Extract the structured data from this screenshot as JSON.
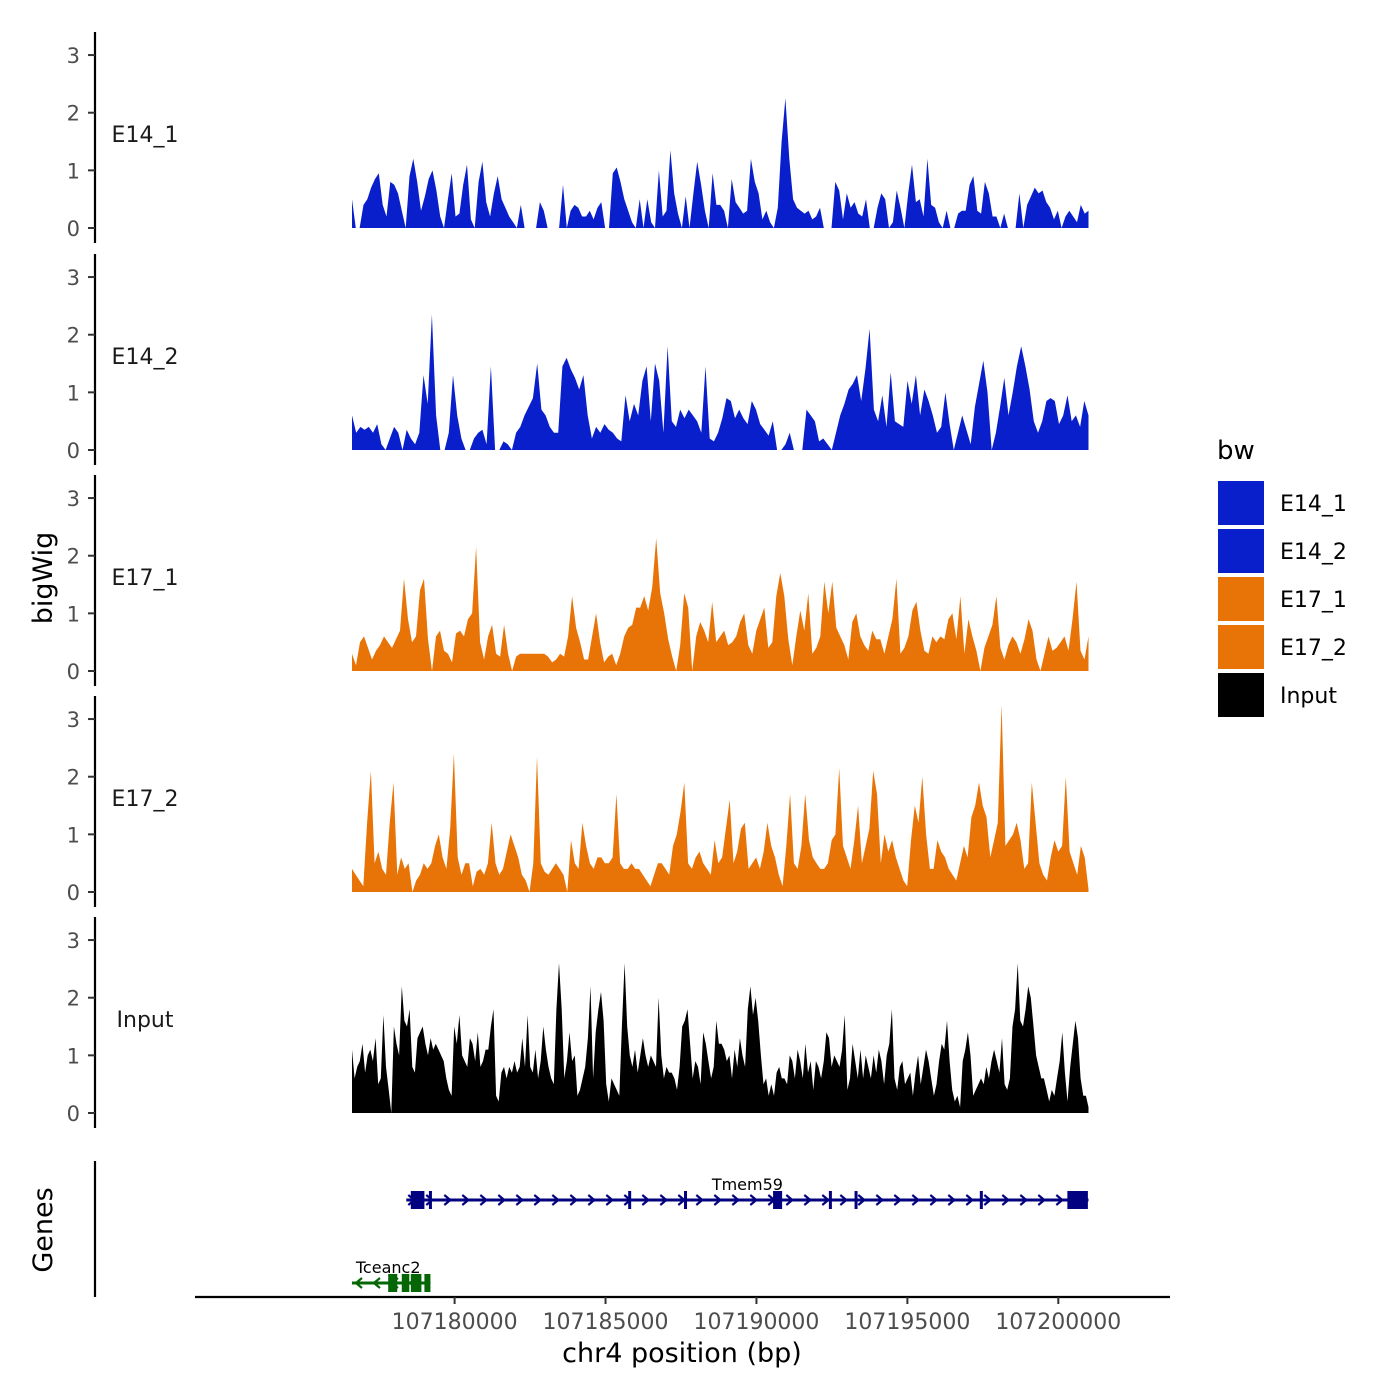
{
  "chart_data": {
    "type": "area",
    "ylabel": "bigWig",
    "xlabel": "chr4 position (bp)",
    "genes_label": "Genes",
    "legend_title": "bw",
    "xlim": [
      107171400,
      107203700
    ],
    "x_tick_values": [
      107180000,
      107185000,
      107190000,
      107195000,
      107200000
    ],
    "x_tick_labels": [
      "107180000",
      "107185000",
      "107190000",
      "107195000",
      "107200000"
    ],
    "ylim": [
      0,
      3.4
    ],
    "y_tick_values": [
      0,
      1,
      2,
      3
    ],
    "y_tick_labels": [
      "0",
      "1",
      "2",
      "3"
    ],
    "series": [
      {
        "name": "E14_1",
        "color": "#0a1fcc",
        "x_start": 107176600,
        "x_end": 107201000,
        "values": [
          0.5,
          0,
          0,
          0.4,
          0.5,
          0.7,
          0.85,
          0.95,
          0.4,
          0.2,
          0.8,
          0.75,
          0.6,
          0.3,
          0,
          0.9,
          1.2,
          0.8,
          0.3,
          0.55,
          0.85,
          1.0,
          0.65,
          0.2,
          0,
          0.5,
          0.95,
          0.2,
          0.25,
          0.75,
          1.1,
          0.15,
          0,
          0.8,
          1.15,
          0.45,
          0.2,
          0.6,
          0.9,
          0.5,
          0.35,
          0.2,
          0.1,
          0,
          0.4,
          0,
          0,
          0,
          0,
          0.45,
          0.3,
          0,
          0,
          0,
          0,
          0.75,
          0,
          0.3,
          0.4,
          0.35,
          0.2,
          0.2,
          0.3,
          0.15,
          0.35,
          0.45,
          0,
          0,
          0.95,
          1.05,
          0.8,
          0.5,
          0.3,
          0.1,
          0,
          0.5,
          0,
          0.5,
          0.1,
          0,
          1.0,
          0.2,
          0.3,
          1.35,
          0.6,
          0.25,
          0,
          0.55,
          0,
          0.6,
          1.15,
          0.75,
          0.3,
          0,
          0.95,
          0.4,
          0.4,
          0.3,
          0,
          0.85,
          0.45,
          0.35,
          0.25,
          0.3,
          1.2,
          0.8,
          0.6,
          0.15,
          0.3,
          0.1,
          0,
          0.35,
          1.5,
          2.25,
          1.2,
          0.5,
          0.35,
          0.3,
          0.25,
          0.3,
          0.15,
          0.2,
          0.35,
          0,
          0,
          0,
          0.8,
          0.65,
          0.15,
          0.6,
          0.35,
          0.45,
          0.25,
          0.2,
          0.5,
          0,
          0,
          0.35,
          0.6,
          0.5,
          0,
          0.1,
          0.65,
          0.35,
          0,
          0.6,
          1.1,
          0.45,
          0.5,
          0.2,
          1.2,
          0.4,
          0.35,
          0.1,
          0,
          0.3,
          0,
          0,
          0.25,
          0.3,
          0.3,
          0.75,
          0.9,
          0.3,
          0.25,
          0.8,
          0.6,
          0.2,
          0.2,
          0,
          0.25,
          0,
          0,
          0,
          0.6,
          0,
          0.4,
          0.55,
          0.7,
          0.6,
          0.65,
          0.45,
          0.35,
          0.15,
          0.3,
          0,
          0.2,
          0.3,
          0.2,
          0.1,
          0.4,
          0.25,
          0.3
        ]
      },
      {
        "name": "E14_2",
        "color": "#0a1fcc",
        "x_start": 107176600,
        "x_end": 107201000,
        "values": [
          0.6,
          0.3,
          0.4,
          0.35,
          0.4,
          0.3,
          0.45,
          0.1,
          0,
          0.2,
          0.4,
          0.3,
          0,
          0.35,
          0.2,
          0.1,
          0.3,
          1.3,
          0.8,
          2.35,
          0.6,
          0,
          0,
          0.3,
          1.3,
          0.6,
          0.2,
          0,
          0,
          0.2,
          0.3,
          0.35,
          0.1,
          1.45,
          0,
          0,
          0.15,
          0.1,
          0,
          0.3,
          0.4,
          0.6,
          0.75,
          0.9,
          1.5,
          0.7,
          0.6,
          0.4,
          0.3,
          0.3,
          1.45,
          1.6,
          1.4,
          1.25,
          1.05,
          1.3,
          0.6,
          0.2,
          0.4,
          0.3,
          0.45,
          0.35,
          0.3,
          0.2,
          0.15,
          0.95,
          0.5,
          0.8,
          0.6,
          1.2,
          1.45,
          0.5,
          1.5,
          1.2,
          0.3,
          1.8,
          0.5,
          0.4,
          0.7,
          0.55,
          0.7,
          0.6,
          0.5,
          0.3,
          1.45,
          0.2,
          0.15,
          0.3,
          0.55,
          0.9,
          0.85,
          0.55,
          0.7,
          0.55,
          0.45,
          0.85,
          0.7,
          0.45,
          0.35,
          0.25,
          0.5,
          0,
          0,
          0.1,
          0.3,
          0,
          0,
          0,
          0.7,
          0.6,
          0.5,
          0.15,
          0.2,
          0.1,
          0,
          0.3,
          0.6,
          0.8,
          1.05,
          1.15,
          1.3,
          0.85,
          1.4,
          2.1,
          0.7,
          0.5,
          0.95,
          0.4,
          1.35,
          0.5,
          0.45,
          0.4,
          1.2,
          0.8,
          1.3,
          0.6,
          1.05,
          0.85,
          0.6,
          0.3,
          0.4,
          1.0,
          0.45,
          0,
          0.3,
          0.6,
          0.35,
          0.1,
          0.75,
          1.15,
          1.55,
          1.0,
          0,
          0.3,
          0.75,
          1.25,
          0.6,
          1.0,
          1.45,
          1.8,
          1.45,
          1.05,
          0.5,
          0.3,
          0.5,
          0.85,
          0.9,
          0.85,
          0.45,
          0.6,
          0.95,
          0.5,
          0.6,
          0.4,
          0.85,
          0.6
        ]
      },
      {
        "name": "E17_1",
        "color": "#e87408",
        "x_start": 107176600,
        "x_end": 107201000,
        "values": [
          0.3,
          0.1,
          0.5,
          0.6,
          0.4,
          0.2,
          0.35,
          0.45,
          0.6,
          0.5,
          0.4,
          0.55,
          0.7,
          1.6,
          0.9,
          0.5,
          0.6,
          1.4,
          1.6,
          0.55,
          0,
          0.6,
          0.7,
          0.35,
          0.3,
          0.15,
          0.65,
          0.7,
          0.6,
          0.9,
          1.0,
          2.15,
          0.5,
          0.2,
          0.6,
          0.8,
          0.3,
          0.25,
          0.8,
          0.3,
          0,
          0.25,
          0.3,
          0.3,
          0.3,
          0.3,
          0.3,
          0.3,
          0.3,
          0.25,
          0.15,
          0.2,
          0.3,
          0.25,
          0.6,
          1.3,
          0.75,
          0.5,
          0.2,
          0.2,
          0.6,
          1.0,
          0.5,
          0.15,
          0.25,
          0.3,
          0.1,
          0.3,
          0.6,
          0.75,
          0.8,
          1.1,
          1.1,
          1.3,
          1.05,
          1.45,
          2.3,
          1.35,
          1.0,
          0.55,
          0.25,
          0,
          0.45,
          1.35,
          1.1,
          0,
          0.6,
          0.85,
          0.7,
          0.5,
          1.2,
          0.5,
          0.6,
          0.7,
          0.45,
          0.5,
          0.6,
          0.85,
          1.0,
          0.45,
          0.3,
          0.7,
          0.9,
          1.1,
          0.4,
          0.5,
          1.3,
          1.7,
          1.3,
          0.55,
          0.1,
          0.6,
          1.05,
          0.7,
          1.35,
          0.3,
          0.4,
          0.6,
          1.55,
          1.0,
          1.55,
          0.75,
          0.6,
          0.45,
          0.2,
          0.85,
          1.0,
          0.6,
          0.45,
          0.35,
          0.7,
          0.55,
          0.55,
          0.3,
          0.6,
          0.9,
          1.6,
          0.3,
          0.4,
          0.6,
          1.05,
          1.2,
          0.7,
          0.35,
          0.3,
          0.6,
          0.5,
          0.6,
          0.55,
          0.9,
          1.0,
          0.55,
          1.3,
          0.3,
          0.9,
          0.6,
          0.35,
          0,
          0.4,
          0.6,
          0.8,
          1.3,
          0.4,
          0.2,
          0.45,
          0.6,
          0.5,
          0.3,
          0.55,
          0.9,
          0.7,
          0.2,
          0,
          0.3,
          0.6,
          0.35,
          0.4,
          0.5,
          0.6,
          0.35,
          0.9,
          1.55,
          0.35,
          0.2,
          0.6
        ]
      },
      {
        "name": "E17_2",
        "color": "#e87408",
        "x_start": 107176600,
        "x_end": 107201000,
        "values": [
          0.4,
          0.3,
          0.2,
          0.1,
          1.2,
          2.1,
          0.5,
          0.7,
          0.4,
          0.3,
          1.2,
          1.9,
          0.3,
          0.6,
          0.4,
          0.5,
          0,
          0.2,
          0.3,
          0.5,
          0.4,
          0.5,
          0.8,
          1.0,
          0.6,
          0.4,
          1.1,
          2.4,
          0.6,
          0.3,
          0.5,
          0.5,
          0.1,
          0.35,
          0.4,
          0.3,
          0.5,
          1.2,
          0.5,
          0.3,
          0.4,
          0.7,
          1.0,
          0.8,
          0.6,
          0.3,
          0.2,
          0,
          0.5,
          2.35,
          0.5,
          0.35,
          0.3,
          0.4,
          0.5,
          0.4,
          0.3,
          0,
          0.9,
          0.5,
          0.4,
          1.2,
          0.8,
          0.5,
          0.4,
          0.6,
          0.6,
          0.5,
          0.5,
          0.6,
          1.7,
          0.5,
          0.4,
          0.4,
          0.5,
          0.4,
          0.4,
          0.3,
          0.2,
          0.1,
          0.3,
          0.5,
          0.5,
          0.4,
          0.3,
          0.8,
          1.0,
          1.4,
          1.9,
          0.5,
          0.4,
          0.6,
          0.7,
          0.5,
          0.4,
          0.3,
          0.9,
          0.5,
          0.6,
          1.1,
          1.6,
          0.5,
          0.7,
          1.1,
          1.2,
          0.4,
          0.5,
          0.6,
          0.4,
          0.7,
          1.2,
          0.8,
          0.6,
          0.3,
          0.1,
          0.8,
          1.7,
          0.5,
          0.4,
          0.8,
          1.7,
          0.9,
          0.6,
          0.5,
          0.4,
          0.4,
          0.5,
          0.9,
          1.0,
          2.15,
          0.8,
          0.6,
          0.4,
          0.9,
          1.5,
          0.5,
          0.8,
          1.1,
          2.1,
          1.7,
          0.5,
          1.0,
          0.7,
          0.9,
          0.6,
          0.4,
          0.2,
          0.1,
          0.9,
          1.5,
          1.2,
          2.0,
          1.0,
          0.4,
          0.4,
          0.9,
          0.7,
          0.6,
          0.4,
          0.3,
          0.2,
          0.5,
          0.8,
          0.6,
          1.3,
          1.5,
          1.9,
          1.5,
          1.3,
          0.6,
          0.9,
          1.2,
          3.25,
          0.8,
          0.9,
          1.0,
          1.2,
          0.9,
          0.4,
          0.5,
          1.9,
          1.2,
          0.5,
          0.3,
          0.2,
          0.6,
          0.9,
          0.7,
          0.8,
          2.0,
          0.7,
          0.5,
          0.3,
          0.8,
          0.6,
          0.05
        ]
      },
      {
        "name": "Input",
        "color": "#000000",
        "x_start": 107176600,
        "x_end": 107201000,
        "values": [
          1.1,
          0.6,
          0.8,
          0.9,
          1.2,
          0.7,
          1.0,
          1.1,
          0.9,
          1.3,
          0.5,
          0.6,
          1.7,
          0.8,
          0.4,
          0,
          1.5,
          1.2,
          1.0,
          2.2,
          1.6,
          1.5,
          1.8,
          0.8,
          0.7,
          1.3,
          1.4,
          1.5,
          1.2,
          1.0,
          1.3,
          1.1,
          1.2,
          1.1,
          1.0,
          0.9,
          0.6,
          0.4,
          0.3,
          1.5,
          1.2,
          1.7,
          1.0,
          0.9,
          0.8,
          1.3,
          1.2,
          0.9,
          1.4,
          0.8,
          0.9,
          1.1,
          1.1,
          1.5,
          1.8,
          0.3,
          0.2,
          0.7,
          0.8,
          0.6,
          0.8,
          0.7,
          0.9,
          0.7,
          0.8,
          1.3,
          0.8,
          1.7,
          0.8,
          0.7,
          1.1,
          0.6,
          0.9,
          1.5,
          1.1,
          0.8,
          0.6,
          0.5,
          1.8,
          2.6,
          1.8,
          0.6,
          0.9,
          1.4,
          0.9,
          1.0,
          0.3,
          0.4,
          0.6,
          0.8,
          1.3,
          2.2,
          0.6,
          1.4,
          1.8,
          2.1,
          1.6,
          0.5,
          0.2,
          0.6,
          0.5,
          0.4,
          0.3,
          1.5,
          2.6,
          1.5,
          1.0,
          0.8,
          1.1,
          0.7,
          1.0,
          1.3,
          1.0,
          0.8,
          1.0,
          0.9,
          0.8,
          2.0,
          1.0,
          0.6,
          0.8,
          0.7,
          0.7,
          0.6,
          0.4,
          0.8,
          1.5,
          1.6,
          1.8,
          1.2,
          0.6,
          0.9,
          0.8,
          0.5,
          1.4,
          1.2,
          0.9,
          0.6,
          0.8,
          1.6,
          1.2,
          1.2,
          1.1,
          0.9,
          1.0,
          0.6,
          1.1,
          0.8,
          1.3,
          1.0,
          0.8,
          1.8,
          2.2,
          1.7,
          2.0,
          1.6,
          1.0,
          0.5,
          0.6,
          0.3,
          0.5,
          0.3,
          0.7,
          0.8,
          0.6,
          0.6,
          0.5,
          1.0,
          0.9,
          0.6,
          1.1,
          0.9,
          0.6,
          1.2,
          0.7,
          0.9,
          0.4,
          0.9,
          0.8,
          0.6,
          0.9,
          1.4,
          1.3,
          0.8,
          1.0,
          0.9,
          0.8,
          1.1,
          1.7,
          0.4,
          0.6,
          1.2,
          0.9,
          0.6,
          1.1,
          0.6,
          1.0,
          0.8,
          0.6,
          1.0,
          0.7,
          1.1,
          0.9,
          0.5,
          1.0,
          1.2,
          1.8,
          0.6,
          0.4,
          0.8,
          0.9,
          0.5,
          0.6,
          0.7,
          0.3,
          0.7,
          1.0,
          0.5,
          0.8,
          1.1,
          0.9,
          0.6,
          0.3,
          0.5,
          0.9,
          1.2,
          1.1,
          1.6,
          0.9,
          0.4,
          0.2,
          0.3,
          0.1,
          0.9,
          1.1,
          1.4,
          1.0,
          0.3,
          0.4,
          0.5,
          0.6,
          0.5,
          0.8,
          0.6,
          0.9,
          1.1,
          0.9,
          0.7,
          1.3,
          0.5,
          0.4,
          0.6,
          1.5,
          1.8,
          2.6,
          1.6,
          1.5,
          1.8,
          2.2,
          2.0,
          1.5,
          1.0,
          0.8,
          0.6,
          0.6,
          0.4,
          0.2,
          0.4,
          0.3,
          0.6,
          0.9,
          1.4,
          0.7,
          0.2,
          0.8,
          1.2,
          1.6,
          1.3,
          0.6,
          0.3,
          0.3,
          0.1
        ]
      }
    ],
    "genes": [
      {
        "name": "Tmem59",
        "color": "#020280",
        "strand": "+",
        "start": 107178400,
        "end": 107201000,
        "exons": [
          [
            107178550,
            107179000
          ],
          [
            107179150,
            107179230
          ],
          [
            107185750,
            107185830
          ],
          [
            107187600,
            107187680
          ],
          [
            107190550,
            107190850
          ],
          [
            107192400,
            107192480
          ],
          [
            107193250,
            107193330
          ],
          [
            107197400,
            107197480
          ],
          [
            107200300,
            107200980
          ]
        ]
      },
      {
        "name": "Tceanc2",
        "color": "#056605",
        "strand": "-",
        "start": 107176600,
        "end": 107179200,
        "exons": [
          [
            107177800,
            107178100
          ],
          [
            107178250,
            107178500
          ],
          [
            107178550,
            107178900
          ],
          [
            107179000,
            107179200
          ]
        ]
      }
    ]
  }
}
